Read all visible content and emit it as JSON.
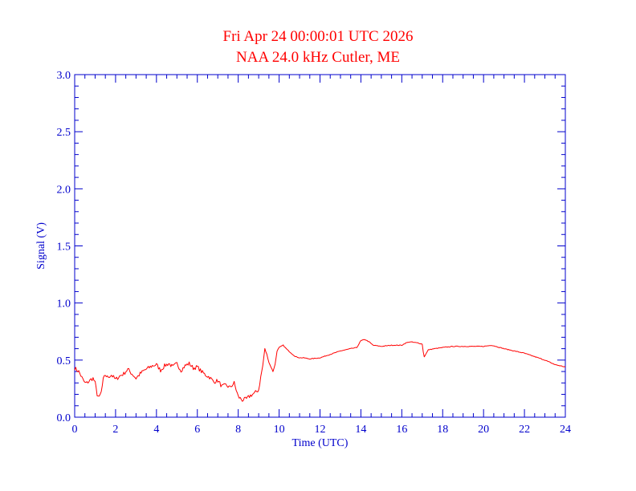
{
  "chart_data": {
    "type": "line",
    "title": "Fri Apr 24 00:00:01 UTC 2026",
    "subtitle": "NAA 24.0 kHz Cutler, ME",
    "xlabel": "Time (UTC)",
    "ylabel": "Signal (V)",
    "xlim": [
      0,
      24
    ],
    "ylim": [
      0.0,
      3.0
    ],
    "x_ticks": [
      "0",
      "2",
      "4",
      "6",
      "8",
      "10",
      "12",
      "14",
      "16",
      "18",
      "20",
      "22",
      "24"
    ],
    "y_ticks": [
      "0.0",
      "0.5",
      "1.0",
      "1.5",
      "2.0",
      "2.5",
      "3.0"
    ],
    "grid": false,
    "colors": {
      "series": "#ff0000",
      "axes": "#0000cc",
      "title": "#ff0000"
    },
    "series": [
      {
        "x": [
          0,
          0.2,
          0.4,
          0.5,
          0.6,
          0.8,
          0.9,
          1.0,
          1.1,
          1.2,
          1.3,
          1.4,
          1.5,
          1.6,
          1.8,
          2.0,
          2.2,
          2.4,
          2.5,
          2.6,
          2.8,
          3.0,
          3.2,
          3.4,
          3.6,
          3.8,
          4.0,
          4.2,
          4.4,
          4.6,
          4.8,
          5.0,
          5.2,
          5.4,
          5.6,
          5.8,
          6.0,
          6.2,
          6.4,
          6.6,
          6.8,
          7.0,
          7.2,
          7.4,
          7.6,
          7.8,
          8.0,
          8.2,
          8.4,
          8.6,
          8.8,
          9.0,
          9.1,
          9.2,
          9.3,
          9.4,
          9.5,
          9.6,
          9.7,
          9.8,
          9.9,
          10.0,
          10.2,
          10.4,
          10.6,
          10.8,
          11.0,
          11.2,
          11.5,
          12.0,
          12.5,
          13.0,
          13.5,
          13.8,
          14.0,
          14.2,
          14.4,
          14.6,
          15.0,
          15.5,
          16.0,
          16.2,
          16.4,
          16.8,
          17.0,
          17.05,
          17.1,
          17.3,
          17.6,
          18.0,
          18.5,
          19.0,
          19.5,
          20.0,
          20.4,
          21.0,
          21.5,
          22.0,
          22.5,
          23.0,
          23.5,
          24.0
        ],
        "values": [
          0.43,
          0.4,
          0.33,
          0.3,
          0.3,
          0.33,
          0.34,
          0.3,
          0.2,
          0.17,
          0.22,
          0.33,
          0.37,
          0.35,
          0.37,
          0.33,
          0.36,
          0.38,
          0.4,
          0.42,
          0.38,
          0.34,
          0.38,
          0.41,
          0.43,
          0.45,
          0.46,
          0.41,
          0.45,
          0.47,
          0.44,
          0.47,
          0.41,
          0.45,
          0.47,
          0.43,
          0.44,
          0.4,
          0.37,
          0.35,
          0.31,
          0.32,
          0.27,
          0.28,
          0.26,
          0.3,
          0.18,
          0.15,
          0.16,
          0.19,
          0.21,
          0.24,
          0.35,
          0.45,
          0.6,
          0.55,
          0.48,
          0.44,
          0.4,
          0.46,
          0.58,
          0.61,
          0.63,
          0.59,
          0.56,
          0.53,
          0.52,
          0.52,
          0.51,
          0.52,
          0.55,
          0.58,
          0.6,
          0.61,
          0.67,
          0.68,
          0.66,
          0.63,
          0.62,
          0.63,
          0.63,
          0.65,
          0.66,
          0.65,
          0.64,
          0.57,
          0.53,
          0.59,
          0.6,
          0.61,
          0.62,
          0.62,
          0.62,
          0.62,
          0.63,
          0.6,
          0.58,
          0.56,
          0.53,
          0.5,
          0.46,
          0.44
        ]
      }
    ]
  }
}
